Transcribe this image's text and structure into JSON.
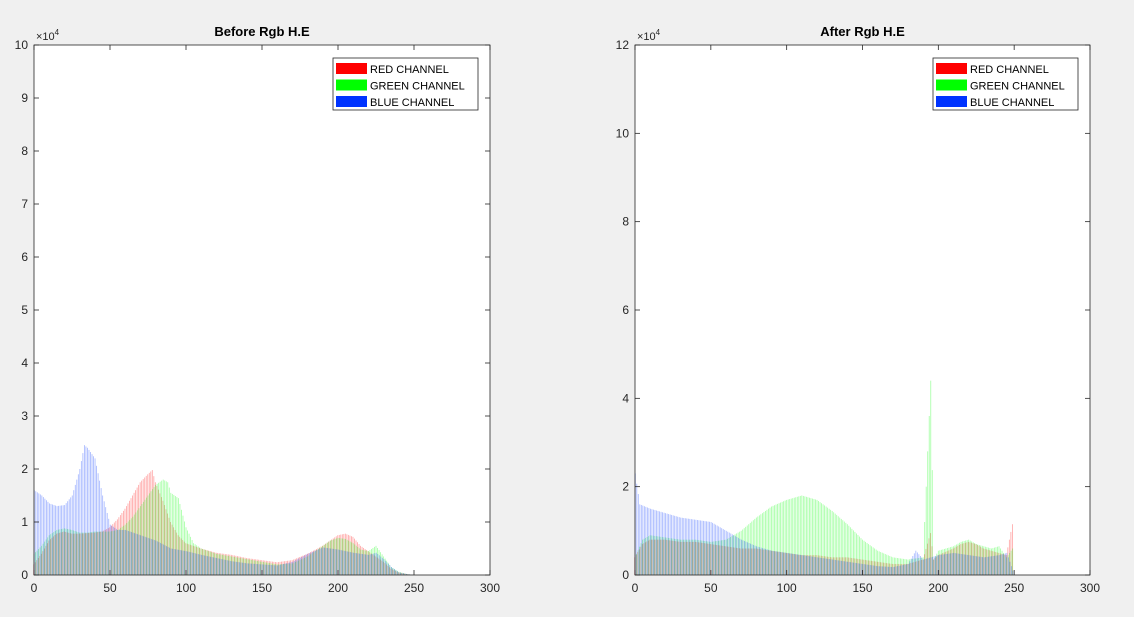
{
  "chart_data": [
    {
      "type": "bar",
      "title": "Before Rgb H.E",
      "xlabel": "",
      "ylabel": "",
      "xlim": [
        0,
        300
      ],
      "ylim": [
        0,
        100000
      ],
      "x_ticks": [
        "0",
        "50",
        "100",
        "150",
        "200",
        "250",
        "300"
      ],
      "y_ticks": [
        "0",
        "1",
        "2",
        "3",
        "4",
        "5",
        "6",
        "7",
        "8",
        "9",
        "10"
      ],
      "y_exponent_label": "×10",
      "y_exponent_power": "4",
      "legend_position": "top-right",
      "series": [
        {
          "name": "RED CHANNEL",
          "color": "#ff0000",
          "points": [
            [
              0,
              2000
            ],
            [
              5,
              4000
            ],
            [
              10,
              6500
            ],
            [
              15,
              7800
            ],
            [
              20,
              8200
            ],
            [
              25,
              7800
            ],
            [
              30,
              7800
            ],
            [
              35,
              7900
            ],
            [
              40,
              8000
            ],
            [
              45,
              8200
            ],
            [
              50,
              9000
            ],
            [
              55,
              10500
            ],
            [
              60,
              12500
            ],
            [
              65,
              15000
            ],
            [
              70,
              17500
            ],
            [
              75,
              19000
            ],
            [
              78,
              19800
            ],
            [
              80,
              17500
            ],
            [
              85,
              14000
            ],
            [
              90,
              10000
            ],
            [
              95,
              7500
            ],
            [
              100,
              6000
            ],
            [
              110,
              5000
            ],
            [
              120,
              4200
            ],
            [
              130,
              3800
            ],
            [
              140,
              3200
            ],
            [
              150,
              2800
            ],
            [
              160,
              2400
            ],
            [
              170,
              2800
            ],
            [
              180,
              4000
            ],
            [
              190,
              5500
            ],
            [
              195,
              6500
            ],
            [
              200,
              7500
            ],
            [
              205,
              7800
            ],
            [
              210,
              7200
            ],
            [
              215,
              5500
            ],
            [
              220,
              4500
            ],
            [
              225,
              3500
            ],
            [
              230,
              2500
            ],
            [
              235,
              1200
            ],
            [
              240,
              500
            ],
            [
              245,
              200
            ],
            [
              250,
              0
            ]
          ]
        },
        {
          "name": "GREEN CHANNEL",
          "color": "#00ff00",
          "points": [
            [
              0,
              4000
            ],
            [
              5,
              5500
            ],
            [
              10,
              7500
            ],
            [
              15,
              8500
            ],
            [
              20,
              8800
            ],
            [
              25,
              8500
            ],
            [
              30,
              8000
            ],
            [
              35,
              8000
            ],
            [
              40,
              8200
            ],
            [
              45,
              8200
            ],
            [
              50,
              8200
            ],
            [
              55,
              8500
            ],
            [
              60,
              9500
            ],
            [
              65,
              11000
            ],
            [
              70,
              13000
            ],
            [
              75,
              15000
            ],
            [
              80,
              17000
            ],
            [
              85,
              18000
            ],
            [
              88,
              17500
            ],
            [
              90,
              15500
            ],
            [
              95,
              14500
            ],
            [
              100,
              9000
            ],
            [
              105,
              6000
            ],
            [
              110,
              5000
            ],
            [
              120,
              4000
            ],
            [
              130,
              3500
            ],
            [
              140,
              3000
            ],
            [
              150,
              2500
            ],
            [
              160,
              2000
            ],
            [
              170,
              2200
            ],
            [
              180,
              3500
            ],
            [
              190,
              5500
            ],
            [
              195,
              6500
            ],
            [
              200,
              7000
            ],
            [
              205,
              6800
            ],
            [
              210,
              6000
            ],
            [
              215,
              4800
            ],
            [
              220,
              4500
            ],
            [
              225,
              5500
            ],
            [
              230,
              3500
            ],
            [
              235,
              1500
            ],
            [
              240,
              600
            ],
            [
              245,
              200
            ],
            [
              250,
              0
            ]
          ]
        },
        {
          "name": "BLUE CHANNEL",
          "color": "#0033ff",
          "points": [
            [
              0,
              16000
            ],
            [
              5,
              15000
            ],
            [
              10,
              13500
            ],
            [
              15,
              13000
            ],
            [
              20,
              13200
            ],
            [
              25,
              15000
            ],
            [
              30,
              20000
            ],
            [
              33,
              24500
            ],
            [
              35,
              24000
            ],
            [
              40,
              22000
            ],
            [
              45,
              15000
            ],
            [
              50,
              9500
            ],
            [
              55,
              8500
            ],
            [
              60,
              8500
            ],
            [
              65,
              8000
            ],
            [
              70,
              7500
            ],
            [
              75,
              7000
            ],
            [
              80,
              6500
            ],
            [
              90,
              5000
            ],
            [
              100,
              4500
            ],
            [
              110,
              3800
            ],
            [
              120,
              3200
            ],
            [
              130,
              2600
            ],
            [
              140,
              2200
            ],
            [
              150,
              2000
            ],
            [
              160,
              1800
            ],
            [
              170,
              2500
            ],
            [
              180,
              4000
            ],
            [
              190,
              5200
            ],
            [
              195,
              5000
            ],
            [
              200,
              4800
            ],
            [
              205,
              4500
            ],
            [
              210,
              4200
            ],
            [
              215,
              4000
            ],
            [
              220,
              3800
            ],
            [
              225,
              4200
            ],
            [
              230,
              3000
            ],
            [
              235,
              1500
            ],
            [
              240,
              500
            ],
            [
              245,
              200
            ],
            [
              250,
              0
            ]
          ]
        }
      ]
    },
    {
      "type": "bar",
      "title": "After Rgb H.E",
      "xlabel": "",
      "ylabel": "",
      "xlim": [
        0,
        300
      ],
      "ylim": [
        0,
        120000
      ],
      "x_ticks": [
        "0",
        "50",
        "100",
        "150",
        "200",
        "250",
        "300"
      ],
      "y_ticks": [
        "0",
        "2",
        "4",
        "6",
        "8",
        "10",
        "12"
      ],
      "y_exponent_label": "×10",
      "y_exponent_power": "4",
      "legend_position": "top-right",
      "series": [
        {
          "name": "RED CHANNEL",
          "color": "#ff0000",
          "points": [
            [
              0,
              4000
            ],
            [
              5,
              7000
            ],
            [
              10,
              8000
            ],
            [
              20,
              8000
            ],
            [
              30,
              7500
            ],
            [
              40,
              7500
            ],
            [
              50,
              7000
            ],
            [
              60,
              6500
            ],
            [
              70,
              6000
            ],
            [
              80,
              6000
            ],
            [
              90,
              5500
            ],
            [
              100,
              5000
            ],
            [
              110,
              4500
            ],
            [
              120,
              4500
            ],
            [
              130,
              4000
            ],
            [
              140,
              4000
            ],
            [
              150,
              3500
            ],
            [
              160,
              3000
            ],
            [
              170,
              2500
            ],
            [
              180,
              2500
            ],
            [
              190,
              3500
            ],
            [
              195,
              9500
            ],
            [
              197,
              3500
            ],
            [
              200,
              4500
            ],
            [
              210,
              6000
            ],
            [
              215,
              7000
            ],
            [
              220,
              7500
            ],
            [
              225,
              7000
            ],
            [
              230,
              6000
            ],
            [
              235,
              5500
            ],
            [
              240,
              5000
            ],
            [
              245,
              4500
            ],
            [
              249,
              11500
            ],
            [
              250,
              0
            ]
          ]
        },
        {
          "name": "GREEN CHANNEL",
          "color": "#00ff00",
          "points": [
            [
              0,
              4000
            ],
            [
              5,
              8000
            ],
            [
              10,
              9000
            ],
            [
              20,
              8500
            ],
            [
              30,
              8000
            ],
            [
              40,
              8000
            ],
            [
              50,
              7500
            ],
            [
              60,
              8000
            ],
            [
              70,
              10000
            ],
            [
              80,
              13000
            ],
            [
              90,
              15500
            ],
            [
              100,
              17000
            ],
            [
              110,
              18000
            ],
            [
              120,
              17000
            ],
            [
              130,
              14500
            ],
            [
              140,
              11500
            ],
            [
              150,
              8000
            ],
            [
              160,
              5500
            ],
            [
              170,
              4000
            ],
            [
              180,
              3500
            ],
            [
              190,
              4000
            ],
            [
              195,
              44000
            ],
            [
              197,
              3500
            ],
            [
              200,
              5500
            ],
            [
              210,
              6500
            ],
            [
              215,
              7500
            ],
            [
              220,
              8000
            ],
            [
              225,
              7000
            ],
            [
              230,
              6500
            ],
            [
              235,
              6000
            ],
            [
              240,
              6500
            ],
            [
              245,
              4000
            ],
            [
              249,
              6000
            ],
            [
              250,
              0
            ]
          ]
        },
        {
          "name": "BLUE CHANNEL",
          "color": "#0033ff",
          "points": [
            [
              0,
              23000
            ],
            [
              3,
              16000
            ],
            [
              10,
              15000
            ],
            [
              20,
              14000
            ],
            [
              30,
              13000
            ],
            [
              40,
              12500
            ],
            [
              50,
              12000
            ],
            [
              60,
              10000
            ],
            [
              70,
              8000
            ],
            [
              80,
              6500
            ],
            [
              90,
              5500
            ],
            [
              100,
              5000
            ],
            [
              110,
              4500
            ],
            [
              120,
              4000
            ],
            [
              130,
              3500
            ],
            [
              140,
              3000
            ],
            [
              150,
              2500
            ],
            [
              160,
              2000
            ],
            [
              170,
              1800
            ],
            [
              180,
              2500
            ],
            [
              185,
              5500
            ],
            [
              190,
              3500
            ],
            [
              200,
              4500
            ],
            [
              210,
              5000
            ],
            [
              220,
              4500
            ],
            [
              230,
              4000
            ],
            [
              240,
              4500
            ],
            [
              245,
              5000
            ],
            [
              250,
              0
            ]
          ]
        }
      ]
    }
  ]
}
